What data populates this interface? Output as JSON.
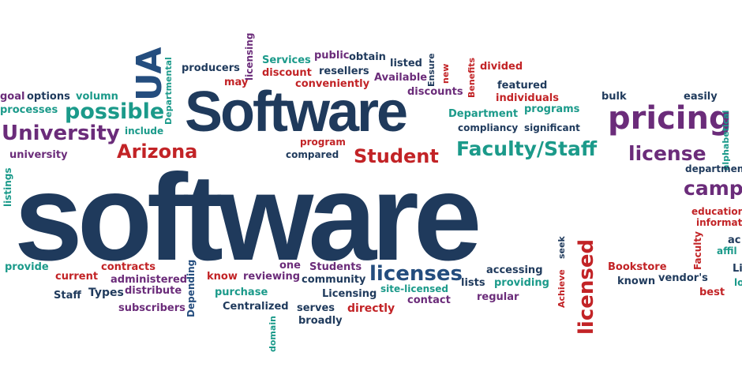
{
  "palette": {
    "navy": "#1f3a5c",
    "red": "#c22326",
    "purple": "#6b2c7a",
    "teal": "#1b9a8a",
    "blue": "#244d7e",
    "maroon": "#9c2432",
    "gray": "#555f6a"
  },
  "words": [
    {
      "text": "software",
      "color": "navy"
    },
    {
      "text": "Software",
      "color": "navy"
    },
    {
      "text": "pricing",
      "color": "purple"
    },
    {
      "text": "UA",
      "color": "blue"
    },
    {
      "text": "University",
      "color": "purple"
    },
    {
      "text": "possible",
      "color": "teal"
    },
    {
      "text": "Arizona",
      "color": "red"
    },
    {
      "text": "Student",
      "color": "red"
    },
    {
      "text": "Faculty/Staff",
      "color": "teal"
    },
    {
      "text": "license",
      "color": "purple"
    },
    {
      "text": "campus",
      "color": "purple"
    },
    {
      "text": "licenses",
      "color": "blue"
    },
    {
      "text": "licensed",
      "color": "red"
    },
    {
      "text": "goal",
      "color": "purple"
    },
    {
      "text": "options",
      "color": "navy"
    },
    {
      "text": "volumn",
      "color": "teal"
    },
    {
      "text": "processes",
      "color": "teal"
    },
    {
      "text": "include",
      "color": "teal"
    },
    {
      "text": "university",
      "color": "purple"
    },
    {
      "text": "listings",
      "color": "teal"
    },
    {
      "text": "producers",
      "color": "navy"
    },
    {
      "text": "may",
      "color": "red"
    },
    {
      "text": "licensing",
      "color": "purple"
    },
    {
      "text": "Departmental",
      "color": "teal"
    },
    {
      "text": "Services",
      "color": "teal"
    },
    {
      "text": "public",
      "color": "purple"
    },
    {
      "text": "obtain",
      "color": "navy"
    },
    {
      "text": "discount",
      "color": "red"
    },
    {
      "text": "resellers",
      "color": "navy"
    },
    {
      "text": "conveniently",
      "color": "red"
    },
    {
      "text": "listed",
      "color": "navy"
    },
    {
      "text": "Available",
      "color": "purple"
    },
    {
      "text": "Ensure",
      "color": "navy"
    },
    {
      "text": "new",
      "color": "red"
    },
    {
      "text": "discounts",
      "color": "purple"
    },
    {
      "text": "Benefits",
      "color": "red"
    },
    {
      "text": "divided",
      "color": "red"
    },
    {
      "text": "featured",
      "color": "navy"
    },
    {
      "text": "individuals",
      "color": "red"
    },
    {
      "text": "programs",
      "color": "teal"
    },
    {
      "text": "Department",
      "color": "teal"
    },
    {
      "text": "compliancy",
      "color": "navy"
    },
    {
      "text": "significant",
      "color": "navy"
    },
    {
      "text": "bulk",
      "color": "navy"
    },
    {
      "text": "easily",
      "color": "navy"
    },
    {
      "text": "alphabetical",
      "color": "teal"
    },
    {
      "text": "departments",
      "color": "navy"
    },
    {
      "text": "program",
      "color": "red"
    },
    {
      "text": "compared",
      "color": "navy"
    },
    {
      "text": "educational",
      "color": "red"
    },
    {
      "text": "information",
      "color": "red"
    },
    {
      "text": "provide",
      "color": "teal"
    },
    {
      "text": "contracts",
      "color": "red"
    },
    {
      "text": "current",
      "color": "red"
    },
    {
      "text": "administered",
      "color": "purple"
    },
    {
      "text": "Depending",
      "color": "blue"
    },
    {
      "text": "Staff",
      "color": "navy"
    },
    {
      "text": "Types",
      "color": "navy"
    },
    {
      "text": "distribute",
      "color": "purple"
    },
    {
      "text": "subscribers",
      "color": "purple"
    },
    {
      "text": "know",
      "color": "red"
    },
    {
      "text": "reviewing",
      "color": "purple"
    },
    {
      "text": "one",
      "color": "purple"
    },
    {
      "text": "Students",
      "color": "purple"
    },
    {
      "text": "community",
      "color": "navy"
    },
    {
      "text": "purchase",
      "color": "teal"
    },
    {
      "text": "Centralized",
      "color": "navy"
    },
    {
      "text": "domain",
      "color": "teal"
    },
    {
      "text": "serves",
      "color": "navy"
    },
    {
      "text": "broadly",
      "color": "navy"
    },
    {
      "text": "Licensing",
      "color": "navy"
    },
    {
      "text": "directly",
      "color": "red"
    },
    {
      "text": "site-licensed",
      "color": "teal"
    },
    {
      "text": "contact",
      "color": "purple"
    },
    {
      "text": "lists",
      "color": "navy"
    },
    {
      "text": "accessing",
      "color": "navy"
    },
    {
      "text": "providing",
      "color": "teal"
    },
    {
      "text": "regular",
      "color": "purple"
    },
    {
      "text": "seek",
      "color": "navy"
    },
    {
      "text": "Achieve",
      "color": "red"
    },
    {
      "text": "Bookstore",
      "color": "red"
    },
    {
      "text": "known",
      "color": "navy"
    },
    {
      "text": "vendor's",
      "color": "navy"
    },
    {
      "text": "Faculty",
      "color": "red"
    },
    {
      "text": "best",
      "color": "red"
    },
    {
      "text": "ac",
      "color": "navy"
    },
    {
      "text": "affil",
      "color": "teal"
    },
    {
      "text": "Li",
      "color": "navy"
    },
    {
      "text": "lo",
      "color": "teal"
    }
  ]
}
